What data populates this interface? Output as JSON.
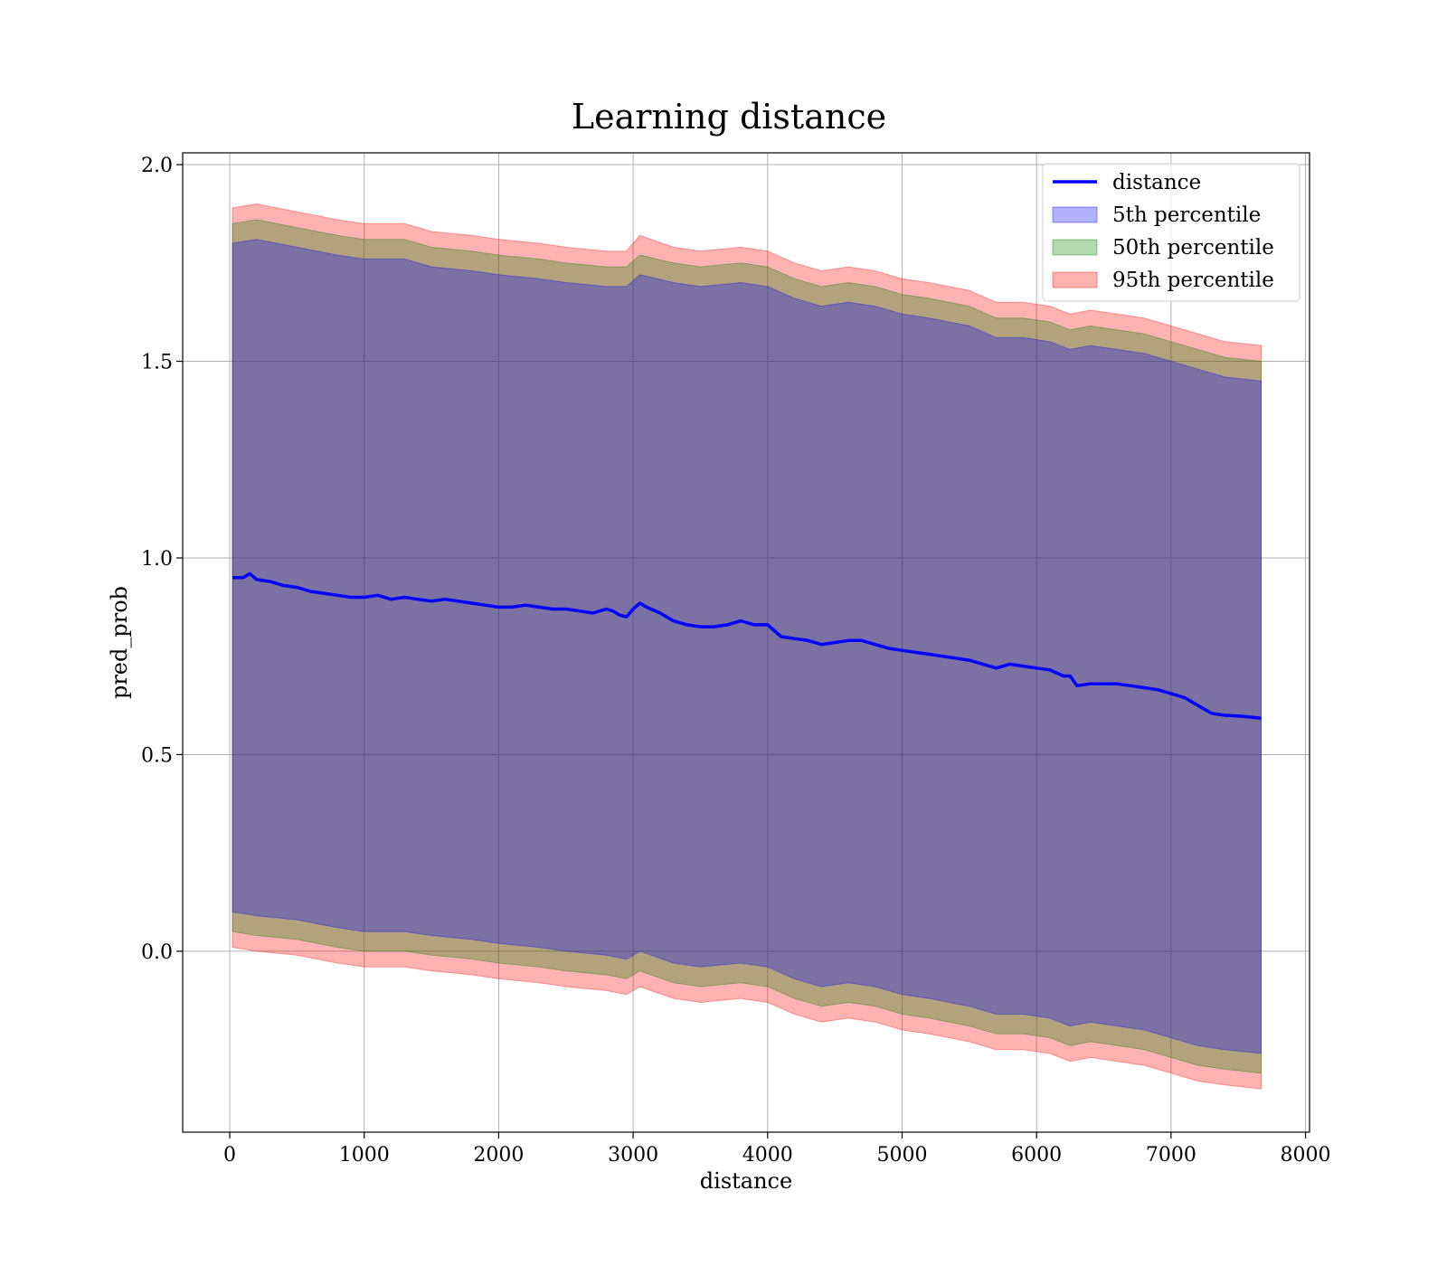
{
  "chart_data": {
    "type": "area",
    "title": "Learning distance",
    "xlabel": "distance",
    "ylabel": "pred_prob",
    "xlim": [
      -350,
      8030
    ],
    "ylim": [
      -0.46,
      2.03
    ],
    "xticks": [
      0,
      1000,
      2000,
      3000,
      4000,
      5000,
      6000,
      7000,
      8000
    ],
    "yticks": [
      0.0,
      0.5,
      1.0,
      1.5,
      2.0
    ],
    "ytick_labels": [
      "0.0",
      "0.5",
      "1.0",
      "1.5",
      "2.0"
    ],
    "grid": true,
    "legend_position": "top-right",
    "colors": {
      "line": "#0000ff",
      "p5": "#0000ff",
      "p50": "#008000",
      "p95": "#ff0000"
    },
    "series": [
      {
        "name": "distance",
        "kind": "line",
        "x": [
          20,
          100,
          150,
          200,
          300,
          400,
          500,
          600,
          700,
          800,
          900,
          1000,
          1100,
          1200,
          1300,
          1400,
          1500,
          1600,
          1700,
          1800,
          1900,
          2000,
          2100,
          2200,
          2300,
          2400,
          2500,
          2600,
          2700,
          2800,
          2850,
          2900,
          2950,
          3000,
          3050,
          3100,
          3200,
          3300,
          3400,
          3500,
          3600,
          3700,
          3800,
          3900,
          4000,
          4100,
          4200,
          4300,
          4400,
          4500,
          4600,
          4700,
          4800,
          4900,
          5000,
          5100,
          5200,
          5300,
          5400,
          5500,
          5600,
          5700,
          5800,
          5900,
          6000,
          6100,
          6200,
          6250,
          6300,
          6400,
          6500,
          6600,
          6700,
          6800,
          6900,
          7000,
          7100,
          7200,
          7300,
          7400,
          7500,
          7600,
          7670
        ],
        "y": [
          0.95,
          0.95,
          0.96,
          0.945,
          0.94,
          0.93,
          0.925,
          0.915,
          0.91,
          0.905,
          0.9,
          0.9,
          0.905,
          0.895,
          0.9,
          0.895,
          0.89,
          0.895,
          0.89,
          0.885,
          0.88,
          0.875,
          0.875,
          0.88,
          0.875,
          0.87,
          0.87,
          0.865,
          0.86,
          0.87,
          0.865,
          0.855,
          0.85,
          0.87,
          0.885,
          0.875,
          0.86,
          0.84,
          0.83,
          0.825,
          0.825,
          0.83,
          0.84,
          0.83,
          0.83,
          0.8,
          0.795,
          0.79,
          0.78,
          0.785,
          0.79,
          0.79,
          0.78,
          0.77,
          0.765,
          0.76,
          0.755,
          0.75,
          0.745,
          0.74,
          0.73,
          0.72,
          0.73,
          0.725,
          0.72,
          0.715,
          0.7,
          0.7,
          0.675,
          0.68,
          0.68,
          0.68,
          0.675,
          0.67,
          0.665,
          0.655,
          0.645,
          0.625,
          0.605,
          0.6,
          0.598,
          0.595,
          0.592
        ]
      },
      {
        "name": "5th percentile",
        "kind": "band",
        "x": [
          20,
          200,
          500,
          800,
          1000,
          1300,
          1500,
          1800,
          2000,
          2300,
          2500,
          2800,
          2950,
          3050,
          3300,
          3500,
          3800,
          4000,
          4200,
          4400,
          4600,
          4800,
          5000,
          5200,
          5500,
          5700,
          5900,
          6100,
          6250,
          6400,
          6600,
          6800,
          7000,
          7200,
          7400,
          7670
        ],
        "upper": [
          1.8,
          1.81,
          1.79,
          1.77,
          1.76,
          1.76,
          1.74,
          1.73,
          1.72,
          1.71,
          1.7,
          1.69,
          1.69,
          1.72,
          1.7,
          1.69,
          1.7,
          1.69,
          1.66,
          1.64,
          1.65,
          1.64,
          1.62,
          1.61,
          1.59,
          1.56,
          1.56,
          1.55,
          1.53,
          1.54,
          1.53,
          1.52,
          1.5,
          1.48,
          1.46,
          1.45
        ],
        "lower": [
          0.1,
          0.09,
          0.08,
          0.06,
          0.05,
          0.05,
          0.04,
          0.03,
          0.02,
          0.01,
          0.0,
          -0.01,
          -0.02,
          0.0,
          -0.03,
          -0.04,
          -0.03,
          -0.04,
          -0.07,
          -0.09,
          -0.08,
          -0.09,
          -0.11,
          -0.12,
          -0.14,
          -0.16,
          -0.16,
          -0.17,
          -0.19,
          -0.18,
          -0.19,
          -0.2,
          -0.22,
          -0.24,
          -0.25,
          -0.26
        ]
      },
      {
        "name": "50th percentile",
        "kind": "band",
        "x": [
          20,
          200,
          500,
          800,
          1000,
          1300,
          1500,
          1800,
          2000,
          2300,
          2500,
          2800,
          2950,
          3050,
          3300,
          3500,
          3800,
          4000,
          4200,
          4400,
          4600,
          4800,
          5000,
          5200,
          5500,
          5700,
          5900,
          6100,
          6250,
          6400,
          6600,
          6800,
          7000,
          7200,
          7400,
          7670
        ],
        "upper": [
          1.85,
          1.86,
          1.84,
          1.82,
          1.81,
          1.81,
          1.79,
          1.78,
          1.77,
          1.76,
          1.75,
          1.74,
          1.74,
          1.77,
          1.75,
          1.74,
          1.75,
          1.74,
          1.71,
          1.69,
          1.7,
          1.69,
          1.67,
          1.66,
          1.64,
          1.61,
          1.61,
          1.6,
          1.58,
          1.59,
          1.58,
          1.57,
          1.55,
          1.53,
          1.51,
          1.5
        ],
        "lower": [
          0.05,
          0.04,
          0.03,
          0.01,
          0.0,
          0.0,
          -0.01,
          -0.02,
          -0.03,
          -0.04,
          -0.05,
          -0.06,
          -0.07,
          -0.05,
          -0.08,
          -0.09,
          -0.08,
          -0.09,
          -0.12,
          -0.14,
          -0.13,
          -0.14,
          -0.16,
          -0.17,
          -0.19,
          -0.21,
          -0.21,
          -0.22,
          -0.24,
          -0.23,
          -0.24,
          -0.25,
          -0.27,
          -0.29,
          -0.3,
          -0.31
        ]
      },
      {
        "name": "95th percentile",
        "kind": "band",
        "x": [
          20,
          200,
          500,
          800,
          1000,
          1300,
          1500,
          1800,
          2000,
          2300,
          2500,
          2800,
          2950,
          3050,
          3300,
          3500,
          3800,
          4000,
          4200,
          4400,
          4600,
          4800,
          5000,
          5200,
          5500,
          5700,
          5900,
          6100,
          6250,
          6400,
          6600,
          6800,
          7000,
          7200,
          7400,
          7670
        ],
        "upper": [
          1.89,
          1.9,
          1.88,
          1.86,
          1.85,
          1.85,
          1.83,
          1.82,
          1.81,
          1.8,
          1.79,
          1.78,
          1.78,
          1.82,
          1.79,
          1.78,
          1.79,
          1.78,
          1.75,
          1.73,
          1.74,
          1.73,
          1.71,
          1.7,
          1.68,
          1.65,
          1.65,
          1.64,
          1.62,
          1.63,
          1.62,
          1.61,
          1.59,
          1.57,
          1.55,
          1.54
        ],
        "lower": [
          0.01,
          0.0,
          -0.01,
          -0.03,
          -0.04,
          -0.04,
          -0.05,
          -0.06,
          -0.07,
          -0.08,
          -0.09,
          -0.1,
          -0.11,
          -0.09,
          -0.12,
          -0.13,
          -0.12,
          -0.13,
          -0.16,
          -0.18,
          -0.17,
          -0.18,
          -0.2,
          -0.21,
          -0.23,
          -0.25,
          -0.25,
          -0.26,
          -0.28,
          -0.27,
          -0.28,
          -0.29,
          -0.31,
          -0.33,
          -0.34,
          -0.35
        ]
      }
    ]
  }
}
